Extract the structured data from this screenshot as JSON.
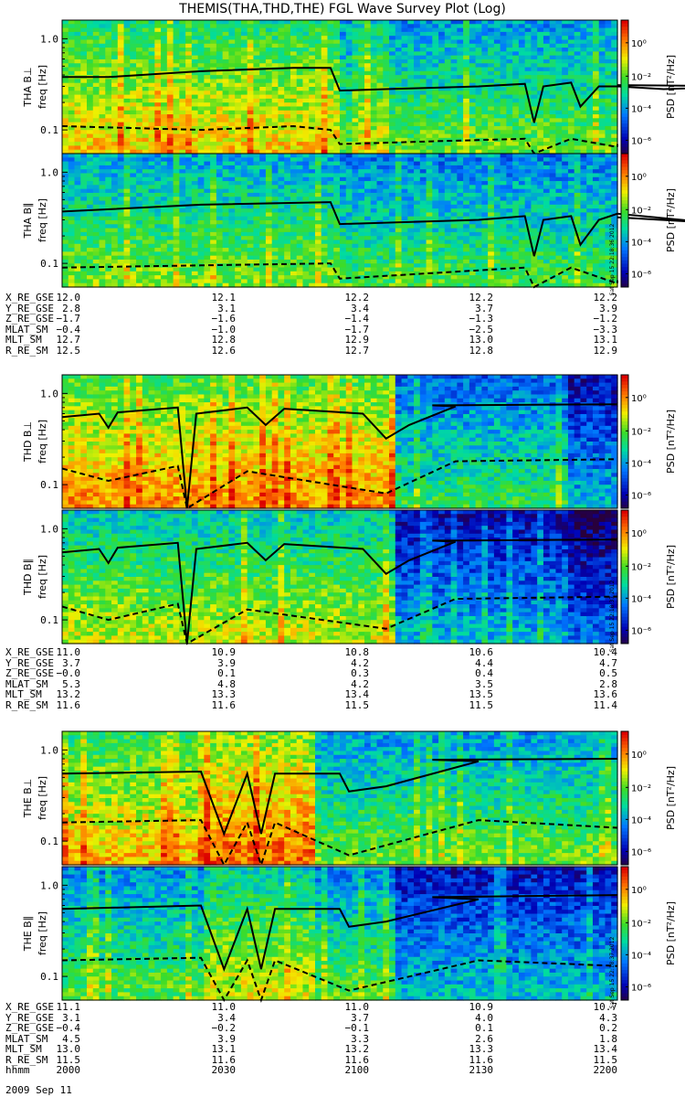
{
  "title": "THEMIS(THA,THD,THE) FGL Wave Survey Plot (Log)",
  "date_label": "2009 Sep 11",
  "colors": {
    "black_line": "#000000"
  },
  "chart_data": [
    {
      "type": "heatmap",
      "panel": "THA B⊥",
      "ylabel_probe": "THA B⊥",
      "ylabel_axis": "freq [Hz]",
      "yscale": "log",
      "ylim_hz": [
        0.055,
        1.6
      ],
      "yticks": [
        "1.0",
        "0.1"
      ],
      "colorbar_label": "PSD [nT²/Hz]",
      "colorbar_ticks": [
        "10⁰",
        "10⁻²",
        "10⁻⁴",
        "10⁻⁶"
      ],
      "xlim_hhmm": [
        2000,
        2200
      ],
      "solid_line_hz": [
        [
          2000,
          0.38
        ],
        [
          2010,
          0.38
        ],
        [
          2030,
          0.44
        ],
        [
          2050,
          0.48
        ],
        [
          2058,
          0.48
        ],
        [
          2100,
          0.27
        ],
        [
          2110,
          0.28
        ],
        [
          2130,
          0.3
        ],
        [
          2140,
          0.32
        ],
        [
          2142,
          0.12
        ],
        [
          2144,
          0.3
        ],
        [
          2150,
          0.33
        ],
        [
          2152,
          0.18
        ],
        [
          2156,
          0.3
        ],
        [
          2160,
          0.3
        ],
        [
          2170,
          0.28
        ],
        [
          2190,
          0.3
        ],
        [
          2200,
          0.31
        ]
      ],
      "dashed_line_hz": [
        [
          2000,
          0.11
        ],
        [
          2030,
          0.1
        ],
        [
          2050,
          0.11
        ],
        [
          2058,
          0.1
        ],
        [
          2100,
          0.07
        ],
        [
          2120,
          0.075
        ],
        [
          2140,
          0.08
        ],
        [
          2142,
          0.05
        ],
        [
          2150,
          0.08
        ],
        [
          2160,
          0.065
        ],
        [
          2200,
          0.07
        ]
      ]
    },
    {
      "type": "heatmap",
      "panel": "THA B∥",
      "ylabel_probe": "THA B∥",
      "ylabel_axis": "freq [Hz]",
      "yscale": "log",
      "ylim_hz": [
        0.055,
        1.6
      ],
      "yticks": [
        "1.0",
        "0.1"
      ],
      "colorbar_label": "PSD [nT²/Hz]",
      "colorbar_ticks": [
        "10⁰",
        "10⁻²",
        "10⁻⁴",
        "10⁻⁶"
      ],
      "side_stamp": "Sat Sep 15 22:18:36 2012",
      "xlim_hhmm": [
        2000,
        2200
      ],
      "solid_line_hz": [
        [
          2000,
          0.37
        ],
        [
          2030,
          0.44
        ],
        [
          2058,
          0.47
        ],
        [
          2100,
          0.27
        ],
        [
          2130,
          0.3
        ],
        [
          2140,
          0.33
        ],
        [
          2142,
          0.12
        ],
        [
          2144,
          0.3
        ],
        [
          2150,
          0.33
        ],
        [
          2152,
          0.16
        ],
        [
          2156,
          0.3
        ],
        [
          2160,
          0.35
        ],
        [
          2180,
          0.28
        ],
        [
          2200,
          0.32
        ]
      ],
      "dashed_line_hz": [
        [
          2000,
          0.09
        ],
        [
          2030,
          0.095
        ],
        [
          2058,
          0.1
        ],
        [
          2100,
          0.068
        ],
        [
          2140,
          0.09
        ],
        [
          2142,
          0.05
        ],
        [
          2150,
          0.09
        ],
        [
          2160,
          0.06
        ],
        [
          2200,
          0.065
        ]
      ]
    },
    {
      "type": "heatmap",
      "panel": "THD B⊥",
      "ylabel_probe": "THD B⊥",
      "ylabel_axis": "freq [Hz]",
      "yscale": "log",
      "ylim_hz": [
        0.055,
        1.6
      ],
      "yticks": [
        "1.0",
        "0.1"
      ],
      "colorbar_label": "PSD [nT²/Hz]",
      "colorbar_ticks": [
        "10⁰",
        "10⁻²",
        "10⁻⁴",
        "10⁻⁶"
      ],
      "xlim_hhmm": [
        2000,
        2200
      ],
      "solid_line_hz": [
        [
          2000,
          0.55
        ],
        [
          2008,
          0.6
        ],
        [
          2010,
          0.42
        ],
        [
          2012,
          0.62
        ],
        [
          2025,
          0.7
        ],
        [
          2027,
          0.05
        ],
        [
          2029,
          0.6
        ],
        [
          2040,
          0.7
        ],
        [
          2044,
          0.45
        ],
        [
          2048,
          0.68
        ],
        [
          2065,
          0.6
        ],
        [
          2070,
          0.32
        ],
        [
          2075,
          0.45
        ],
        [
          2085,
          0.72
        ],
        [
          2120,
          0.74
        ],
        [
          2200,
          0.76
        ]
      ],
      "dashed_line_hz": [
        [
          2000,
          0.15
        ],
        [
          2010,
          0.11
        ],
        [
          2025,
          0.16
        ],
        [
          2027,
          0.05
        ],
        [
          2040,
          0.14
        ],
        [
          2070,
          0.08
        ],
        [
          2085,
          0.18
        ],
        [
          2200,
          0.19
        ]
      ]
    },
    {
      "type": "heatmap",
      "panel": "THD B∥",
      "ylabel_probe": "THD B∥",
      "ylabel_axis": "freq [Hz]",
      "yscale": "log",
      "ylim_hz": [
        0.055,
        1.6
      ],
      "yticks": [
        "1.0",
        "0.1"
      ],
      "colorbar_label": "PSD [nT²/Hz]",
      "colorbar_ticks": [
        "10⁰",
        "10⁻²",
        "10⁻⁴",
        "10⁻⁶"
      ],
      "side_stamp": "Sat Sep 15 22:18:37 2012",
      "xlim_hhmm": [
        2000,
        2200
      ],
      "solid_line_hz": [
        [
          2000,
          0.55
        ],
        [
          2008,
          0.6
        ],
        [
          2010,
          0.42
        ],
        [
          2012,
          0.62
        ],
        [
          2025,
          0.7
        ],
        [
          2027,
          0.05
        ],
        [
          2029,
          0.6
        ],
        [
          2040,
          0.7
        ],
        [
          2044,
          0.45
        ],
        [
          2048,
          0.68
        ],
        [
          2065,
          0.6
        ],
        [
          2070,
          0.32
        ],
        [
          2075,
          0.45
        ],
        [
          2085,
          0.72
        ],
        [
          2120,
          0.74
        ],
        [
          2200,
          0.76
        ]
      ],
      "dashed_line_hz": [
        [
          2000,
          0.14
        ],
        [
          2010,
          0.1
        ],
        [
          2025,
          0.15
        ],
        [
          2027,
          0.05
        ],
        [
          2040,
          0.13
        ],
        [
          2070,
          0.08
        ],
        [
          2085,
          0.17
        ],
        [
          2200,
          0.18
        ]
      ]
    },
    {
      "type": "heatmap",
      "panel": "THE B⊥",
      "ylabel_probe": "THE B⊥",
      "ylabel_axis": "freq [Hz]",
      "yscale": "log",
      "ylim_hz": [
        0.055,
        1.6
      ],
      "yticks": [
        "1.0",
        "0.1"
      ],
      "colorbar_label": "PSD [nT²/Hz]",
      "colorbar_ticks": [
        "10⁰",
        "10⁻²",
        "10⁻⁴",
        "10⁻⁶"
      ],
      "xlim_hhmm": [
        2000,
        2200
      ],
      "solid_line_hz": [
        [
          2000,
          0.55
        ],
        [
          2030,
          0.58
        ],
        [
          2035,
          0.12
        ],
        [
          2040,
          0.55
        ],
        [
          2043,
          0.12
        ],
        [
          2046,
          0.55
        ],
        [
          2060,
          0.55
        ],
        [
          2062,
          0.35
        ],
        [
          2070,
          0.4
        ],
        [
          2090,
          0.75
        ],
        [
          2120,
          0.78
        ],
        [
          2200,
          0.8
        ]
      ],
      "dashed_line_hz": [
        [
          2000,
          0.16
        ],
        [
          2030,
          0.17
        ],
        [
          2035,
          0.05
        ],
        [
          2040,
          0.16
        ],
        [
          2043,
          0.05
        ],
        [
          2046,
          0.16
        ],
        [
          2062,
          0.07
        ],
        [
          2090,
          0.17
        ],
        [
          2200,
          0.14
        ]
      ]
    },
    {
      "type": "heatmap",
      "panel": "THE B∥",
      "ylabel_probe": "THE B∥",
      "ylabel_axis": "freq [Hz]",
      "yscale": "log",
      "ylim_hz": [
        0.055,
        1.6
      ],
      "yticks": [
        "1.0",
        "0.1"
      ],
      "colorbar_label": "PSD [nT²/Hz]",
      "colorbar_ticks": [
        "10⁰",
        "10⁻²",
        "10⁻⁴",
        "10⁻⁶"
      ],
      "side_stamp": "Sat Sep 15 22:18:37 2012",
      "xlim_hhmm": [
        2000,
        2200
      ],
      "solid_line_hz": [
        [
          2000,
          0.55
        ],
        [
          2030,
          0.6
        ],
        [
          2035,
          0.12
        ],
        [
          2040,
          0.55
        ],
        [
          2043,
          0.12
        ],
        [
          2046,
          0.55
        ],
        [
          2060,
          0.55
        ],
        [
          2062,
          0.35
        ],
        [
          2070,
          0.4
        ],
        [
          2090,
          0.7
        ],
        [
          2120,
          0.74
        ],
        [
          2200,
          0.78
        ]
      ],
      "dashed_line_hz": [
        [
          2000,
          0.15
        ],
        [
          2030,
          0.16
        ],
        [
          2035,
          0.05
        ],
        [
          2040,
          0.15
        ],
        [
          2043,
          0.05
        ],
        [
          2046,
          0.15
        ],
        [
          2062,
          0.07
        ],
        [
          2090,
          0.15
        ],
        [
          2200,
          0.13
        ]
      ]
    }
  ],
  "ephemeris": [
    {
      "rows": [
        {
          "label": "X_RE_GSE",
          "values": [
            "12.0",
            "12.1",
            "12.2",
            "12.2",
            "12.2"
          ]
        },
        {
          "label": "Y_RE_GSE",
          "values": [
            "2.8",
            "3.1",
            "3.4",
            "3.7",
            "3.9"
          ]
        },
        {
          "label": "Z_RE_GSE",
          "values": [
            "−1.7",
            "−1.6",
            "−1.4",
            "−1.3",
            "−1.2"
          ]
        },
        {
          "label": "MLAT_SM",
          "values": [
            "−0.4",
            "−1.0",
            "−1.7",
            "−2.5",
            "−3.3"
          ]
        },
        {
          "label": "MLT_SM",
          "values": [
            "12.7",
            "12.8",
            "12.9",
            "13.0",
            "13.1"
          ]
        },
        {
          "label": "R_RE_SM",
          "values": [
            "12.5",
            "12.6",
            "12.7",
            "12.8",
            "12.9"
          ]
        }
      ]
    },
    {
      "rows": [
        {
          "label": "X_RE_GSE",
          "values": [
            "11.0",
            "10.9",
            "10.8",
            "10.6",
            "10.4"
          ]
        },
        {
          "label": "Y_RE_GSE",
          "values": [
            "3.7",
            "3.9",
            "4.2",
            "4.4",
            "4.7"
          ]
        },
        {
          "label": "Z_RE_GSE",
          "values": [
            "−0.0",
            "0.1",
            "0.3",
            "0.4",
            "0.5"
          ]
        },
        {
          "label": "MLAT_SM",
          "values": [
            "5.3",
            "4.8",
            "4.2",
            "3.5",
            "2.8"
          ]
        },
        {
          "label": "MLT_SM",
          "values": [
            "13.2",
            "13.3",
            "13.4",
            "13.5",
            "13.6"
          ]
        },
        {
          "label": "R_RE_SM",
          "values": [
            "11.6",
            "11.6",
            "11.5",
            "11.5",
            "11.4"
          ]
        }
      ]
    },
    {
      "rows": [
        {
          "label": "X_RE_GSE",
          "values": [
            "11.1",
            "11.0",
            "11.0",
            "10.9",
            "10.7"
          ]
        },
        {
          "label": "Y_RE_GSE",
          "values": [
            "3.1",
            "3.4",
            "3.7",
            "4.0",
            "4.3"
          ]
        },
        {
          "label": "Z_RE_GSE",
          "values": [
            "−0.4",
            "−0.2",
            "−0.1",
            "0.1",
            "0.2"
          ]
        },
        {
          "label": "MLAT_SM",
          "values": [
            "4.5",
            "3.9",
            "3.3",
            "2.6",
            "1.8"
          ]
        },
        {
          "label": "MLT_SM",
          "values": [
            "13.0",
            "13.1",
            "13.2",
            "13.3",
            "13.4"
          ]
        },
        {
          "label": "R_RE_SM",
          "values": [
            "11.5",
            "11.6",
            "11.6",
            "11.6",
            "11.5"
          ]
        },
        {
          "label": "hhmm",
          "values": [
            "2000",
            "2030",
            "2100",
            "2130",
            "2200"
          ]
        }
      ]
    }
  ]
}
